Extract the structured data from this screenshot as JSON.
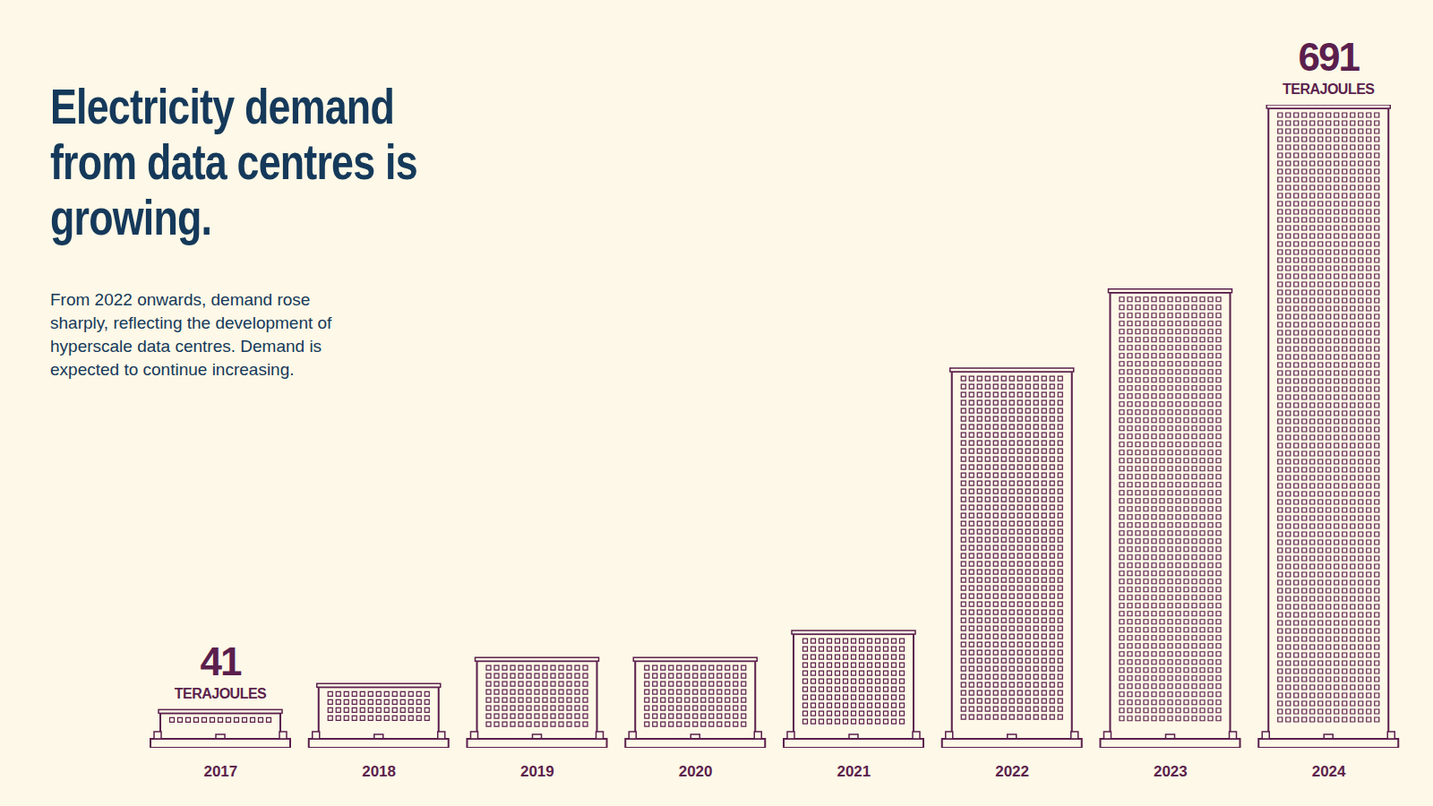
{
  "chart_data": {
    "type": "bar",
    "title": "Electricity demand from data centres is growing.",
    "subtitle": "From 2022 onwards, demand rose sharply, reflecting the development of hyperscale data centres. Demand is expected to continue increasing.",
    "categories": [
      "2017",
      "2018",
      "2019",
      "2020",
      "2021",
      "2022",
      "2023",
      "2024"
    ],
    "values": [
      41,
      69,
      97,
      97,
      126,
      408,
      493,
      691
    ],
    "value_labels": [
      "41",
      null,
      null,
      null,
      null,
      null,
      null,
      "691"
    ],
    "value_unit": "TERAJOULES",
    "color": "#5b1f4d",
    "ylim": [
      0,
      691
    ],
    "tick_labels": "x",
    "grid": false
  }
}
